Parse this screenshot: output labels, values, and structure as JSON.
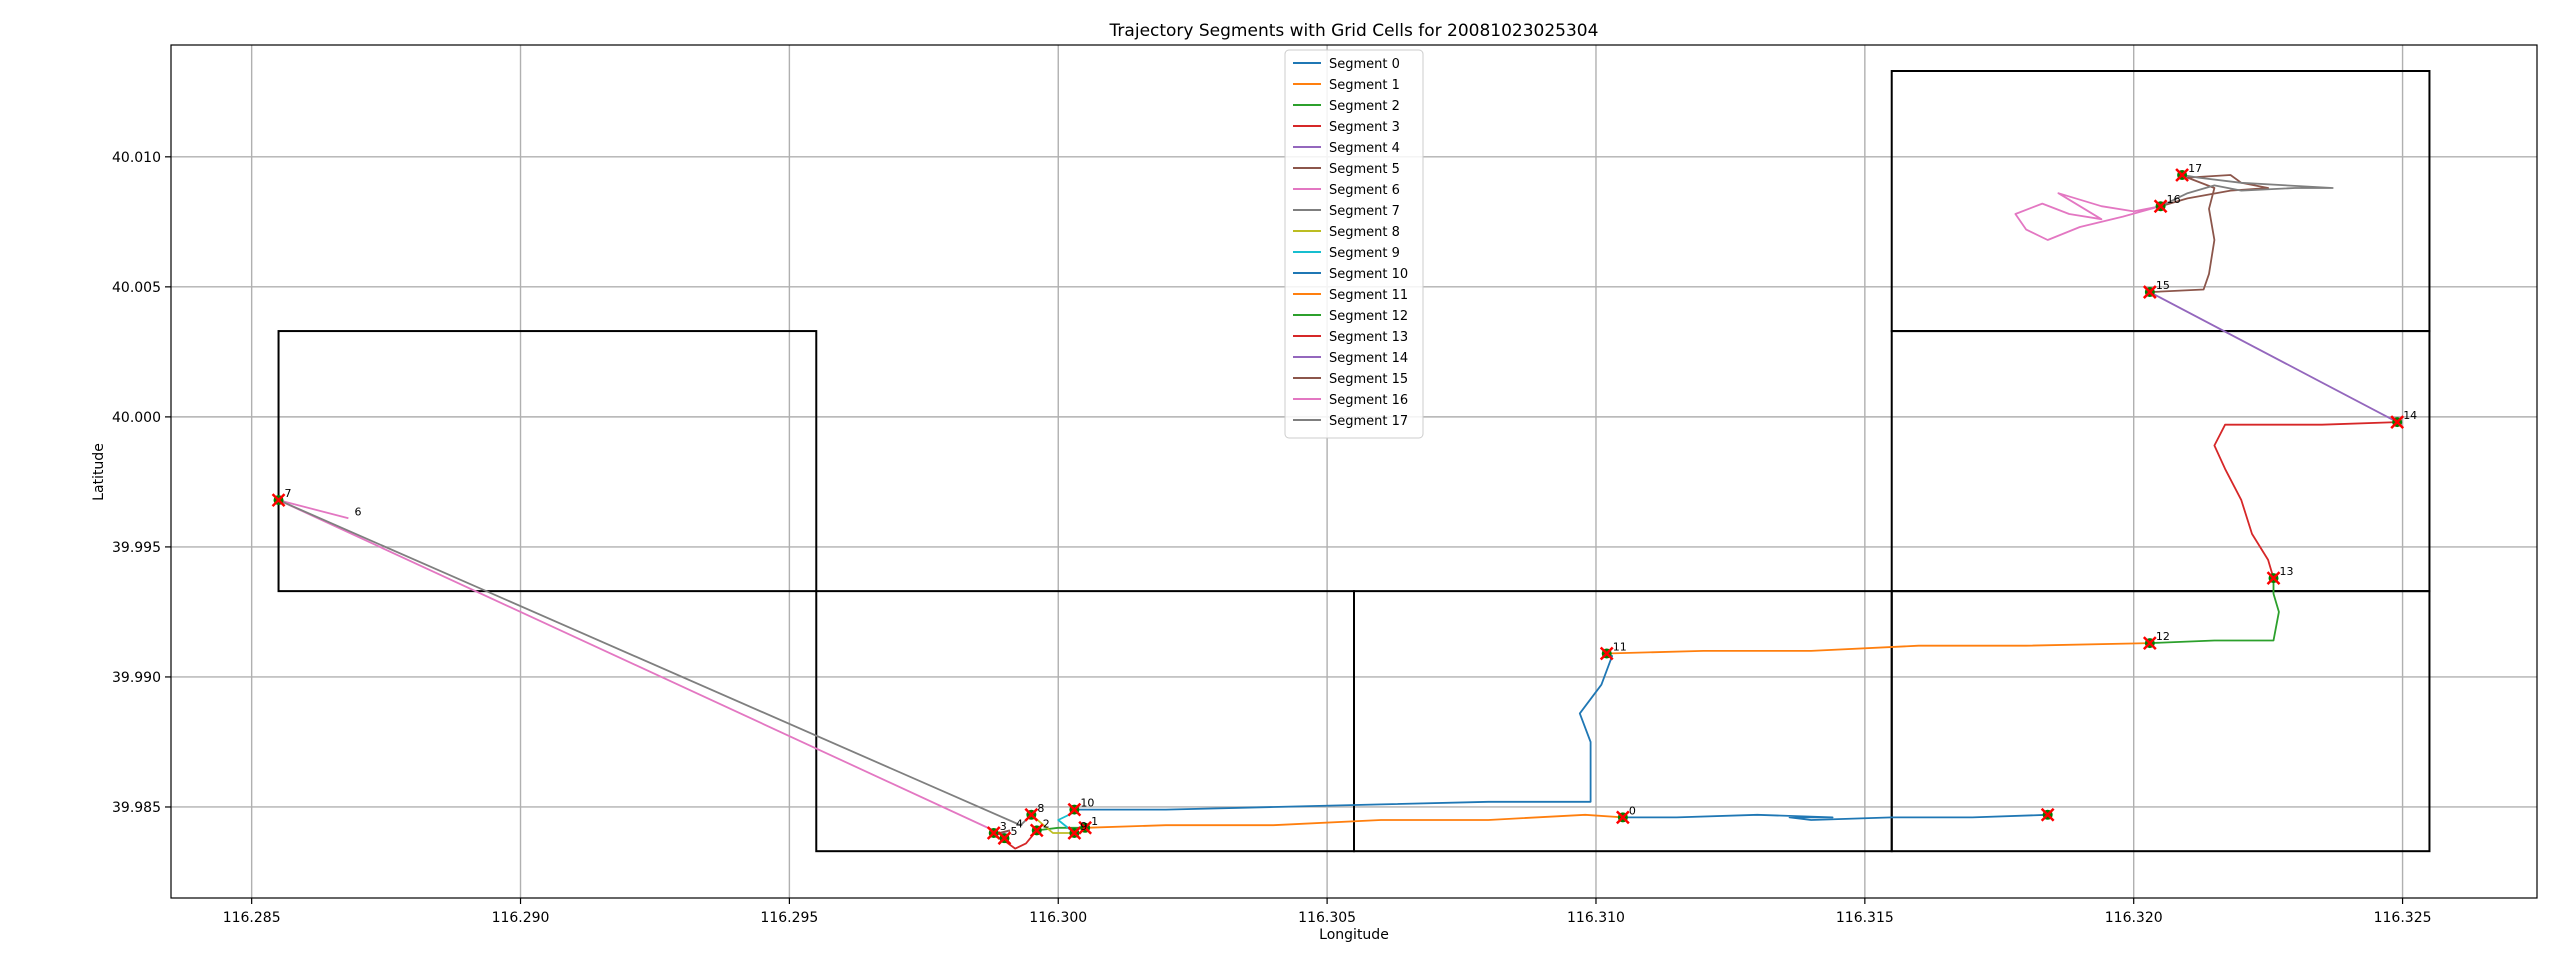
{
  "chart_data": {
    "type": "line",
    "title": "Trajectory Segments with Grid Cells for 20081023025304",
    "xlabel": "Longitude",
    "ylabel": "Latitude",
    "xlim": [
      116.2835,
      116.3275
    ],
    "ylim": [
      39.9815,
      40.0143
    ],
    "x_ticks": [
      116.285,
      116.29,
      116.295,
      116.3,
      116.305,
      116.31,
      116.315,
      116.32,
      116.325
    ],
    "x_tick_labels": [
      "116.285",
      "116.290",
      "116.295",
      "116.300",
      "116.305",
      "116.310",
      "116.315",
      "116.320",
      "116.325"
    ],
    "y_ticks": [
      39.985,
      39.99,
      39.995,
      40.0,
      40.005,
      40.01
    ],
    "y_tick_labels": [
      "39.985",
      "39.990",
      "39.995",
      "40.000",
      "40.005",
      "40.010"
    ],
    "grid": true,
    "legend_position": "upper center",
    "grid_cells": [
      {
        "x0": 116.2855,
        "y0": 39.9933,
        "x1": 116.2955,
        "y1": 40.0033
      },
      {
        "x0": 116.2955,
        "y0": 39.9833,
        "x1": 116.3055,
        "y1": 39.9933
      },
      {
        "x0": 116.3055,
        "y0": 39.9833,
        "x1": 116.3155,
        "y1": 39.9933
      },
      {
        "x0": 116.3155,
        "y0": 39.9833,
        "x1": 116.3255,
        "y1": 39.9933
      },
      {
        "x0": 116.3155,
        "y0": 39.9933,
        "x1": 116.3255,
        "y1": 40.0033
      },
      {
        "x0": 116.3155,
        "y0": 40.0033,
        "x1": 116.3255,
        "y1": 40.0133
      }
    ],
    "series": [
      {
        "name": "Segment 0",
        "color": "#1f77b4",
        "points": [
          [
            116.3184,
            39.9847
          ],
          [
            116.317,
            39.9846
          ],
          [
            116.3155,
            39.9846
          ],
          [
            116.314,
            39.9845
          ],
          [
            116.3136,
            39.9846
          ],
          [
            116.3144,
            39.9846
          ],
          [
            116.313,
            39.9847
          ],
          [
            116.3115,
            39.9846
          ],
          [
            116.3105,
            39.9846
          ]
        ]
      },
      {
        "name": "Segment 1",
        "color": "#ff7f0e",
        "points": [
          [
            116.3105,
            39.9846
          ],
          [
            116.3098,
            39.9847
          ],
          [
            116.308,
            39.9845
          ],
          [
            116.306,
            39.9845
          ],
          [
            116.304,
            39.9843
          ],
          [
            116.302,
            39.9843
          ],
          [
            116.3005,
            39.9842
          ]
        ]
      },
      {
        "name": "Segment 2",
        "color": "#2ca02c",
        "points": [
          [
            116.3005,
            39.9842
          ],
          [
            116.3,
            39.9842
          ],
          [
            116.2996,
            39.9841
          ]
        ]
      },
      {
        "name": "Segment 3",
        "color": "#d62728",
        "points": [
          [
            116.2996,
            39.9841
          ],
          [
            116.2994,
            39.9836
          ],
          [
            116.2992,
            39.9834
          ],
          [
            116.299,
            39.9837
          ],
          [
            116.2988,
            39.9839
          ]
        ]
      },
      {
        "name": "Segment 4",
        "color": "#9467bd",
        "points": [
          [
            116.2988,
            39.9839
          ],
          [
            116.2991,
            39.9841
          ]
        ]
      },
      {
        "name": "Segment 5",
        "color": "#8c564b",
        "points": [
          [
            116.2991,
            39.9841
          ],
          [
            116.2989,
            39.984
          ]
        ]
      },
      {
        "name": "Segment 6",
        "color": "#e377c2",
        "points": [
          [
            116.2989,
            39.984
          ],
          [
            116.2855,
            39.9968
          ],
          [
            116.2868,
            39.9961
          ]
        ]
      },
      {
        "name": "Segment 7",
        "color": "#7f7f7f",
        "points": [
          [
            116.2855,
            39.9968
          ],
          [
            116.2993,
            39.9843
          ],
          [
            116.2995,
            39.9847
          ]
        ]
      },
      {
        "name": "Segment 8",
        "color": "#bcbd22",
        "points": [
          [
            116.2995,
            39.9847
          ],
          [
            116.2999,
            39.984
          ],
          [
            116.3003,
            39.984
          ]
        ]
      },
      {
        "name": "Segment 9",
        "color": "#17becf",
        "points": [
          [
            116.3003,
            39.984
          ],
          [
            116.3,
            39.9845
          ],
          [
            116.3003,
            39.9848
          ]
        ]
      },
      {
        "name": "Segment 10",
        "color": "#1f77b4",
        "points": [
          [
            116.3003,
            39.9849
          ],
          [
            116.302,
            39.9849
          ],
          [
            116.304,
            39.985
          ],
          [
            116.306,
            39.9851
          ],
          [
            116.308,
            39.9852
          ],
          [
            116.3099,
            39.9852
          ],
          [
            116.3099,
            39.986
          ],
          [
            116.3099,
            39.9875
          ],
          [
            116.3097,
            39.9886
          ],
          [
            116.3101,
            39.9897
          ],
          [
            116.3103,
            39.9908
          ],
          [
            116.3102,
            39.9909
          ]
        ]
      },
      {
        "name": "Segment 11",
        "color": "#ff7f0e",
        "points": [
          [
            116.3102,
            39.9909
          ],
          [
            116.312,
            39.991
          ],
          [
            116.314,
            39.991
          ],
          [
            116.316,
            39.9912
          ],
          [
            116.318,
            39.9912
          ],
          [
            116.3203,
            39.9913
          ]
        ]
      },
      {
        "name": "Segment 12",
        "color": "#2ca02c",
        "points": [
          [
            116.3203,
            39.9913
          ],
          [
            116.3215,
            39.9914
          ],
          [
            116.3226,
            39.9914
          ],
          [
            116.3227,
            39.9925
          ],
          [
            116.3226,
            39.9932
          ],
          [
            116.3226,
            39.9938
          ]
        ]
      },
      {
        "name": "Segment 13",
        "color": "#d62728",
        "points": [
          [
            116.3226,
            39.9938
          ],
          [
            116.3225,
            39.9945
          ],
          [
            116.3222,
            39.9955
          ],
          [
            116.322,
            39.9968
          ],
          [
            116.3217,
            39.998
          ],
          [
            116.3215,
            39.9989
          ],
          [
            116.3217,
            39.9997
          ],
          [
            116.3235,
            39.9997
          ],
          [
            116.3249,
            39.9998
          ]
        ]
      },
      {
        "name": "Segment 14",
        "color": "#9467bd",
        "points": [
          [
            116.3249,
            39.9998
          ],
          [
            116.3203,
            40.0048
          ]
        ]
      },
      {
        "name": "Segment 15",
        "color": "#8c564b",
        "points": [
          [
            116.3203,
            40.0048
          ],
          [
            116.3213,
            40.0049
          ],
          [
            116.3214,
            40.0055
          ],
          [
            116.3215,
            40.0068
          ],
          [
            116.3214,
            40.008
          ],
          [
            116.3215,
            40.0088
          ],
          [
            116.321,
            40.0092
          ],
          [
            116.3218,
            40.0093
          ],
          [
            116.322,
            40.009
          ],
          [
            116.3225,
            40.0088
          ],
          [
            116.3218,
            40.0087
          ],
          [
            116.321,
            40.0084
          ],
          [
            116.3205,
            40.0081
          ]
        ]
      },
      {
        "name": "Segment 16",
        "color": "#e377c2",
        "points": [
          [
            116.3205,
            40.0081
          ],
          [
            116.3198,
            40.0077
          ],
          [
            116.319,
            40.0073
          ],
          [
            116.3184,
            40.0068
          ],
          [
            116.318,
            40.0072
          ],
          [
            116.3178,
            40.0078
          ],
          [
            116.3183,
            40.0082
          ],
          [
            116.3188,
            40.0078
          ],
          [
            116.3194,
            40.0076
          ],
          [
            116.3186,
            40.0086
          ],
          [
            116.3194,
            40.0081
          ],
          [
            116.32,
            40.0079
          ],
          [
            116.3205,
            40.0081
          ]
        ]
      },
      {
        "name": "Segment 17",
        "color": "#7f7f7f",
        "points": [
          [
            116.3205,
            40.0081
          ],
          [
            116.321,
            40.0086
          ],
          [
            116.3215,
            40.0089
          ],
          [
            116.322,
            40.0087
          ],
          [
            116.323,
            40.0088
          ],
          [
            116.3237,
            40.0088
          ],
          [
            116.322,
            40.009
          ],
          [
            116.3212,
            40.0092
          ],
          [
            116.3209,
            40.0093
          ]
        ]
      }
    ],
    "markers": [
      {
        "x": 116.2855,
        "y": 39.9968
      },
      {
        "x": 116.2988,
        "y": 39.984
      },
      {
        "x": 116.299,
        "y": 39.9838
      },
      {
        "x": 116.2995,
        "y": 39.9847
      },
      {
        "x": 116.2996,
        "y": 39.9841
      },
      {
        "x": 116.3003,
        "y": 39.984
      },
      {
        "x": 116.3003,
        "y": 39.9849
      },
      {
        "x": 116.3005,
        "y": 39.9842
      },
      {
        "x": 116.3102,
        "y": 39.9909
      },
      {
        "x": 116.3105,
        "y": 39.9846
      },
      {
        "x": 116.3184,
        "y": 39.9847
      },
      {
        "x": 116.3203,
        "y": 39.9913
      },
      {
        "x": 116.3203,
        "y": 40.0048
      },
      {
        "x": 116.3205,
        "y": 40.0081
      },
      {
        "x": 116.3209,
        "y": 40.0093
      },
      {
        "x": 116.3226,
        "y": 39.9938
      },
      {
        "x": 116.3249,
        "y": 39.9998
      }
    ],
    "point_labels": [
      {
        "x": 116.3105,
        "y": 39.9846,
        "text": "0"
      },
      {
        "x": 116.3005,
        "y": 39.9842,
        "text": "1"
      },
      {
        "x": 116.2996,
        "y": 39.9841,
        "text": "2"
      },
      {
        "x": 116.2988,
        "y": 39.984,
        "text": "3"
      },
      {
        "x": 116.2991,
        "y": 39.9841,
        "text": "4"
      },
      {
        "x": 116.299,
        "y": 39.9838,
        "text": "5"
      },
      {
        "x": 116.2868,
        "y": 39.9961,
        "text": "6"
      },
      {
        "x": 116.2855,
        "y": 39.9968,
        "text": "7"
      },
      {
        "x": 116.2995,
        "y": 39.9847,
        "text": "8"
      },
      {
        "x": 116.3003,
        "y": 39.984,
        "text": "9"
      },
      {
        "x": 116.3003,
        "y": 39.9849,
        "text": "10"
      },
      {
        "x": 116.3102,
        "y": 39.9909,
        "text": "11"
      },
      {
        "x": 116.3203,
        "y": 39.9913,
        "text": "12"
      },
      {
        "x": 116.3226,
        "y": 39.9938,
        "text": "13"
      },
      {
        "x": 116.3249,
        "y": 39.9998,
        "text": "14"
      },
      {
        "x": 116.3203,
        "y": 40.0048,
        "text": "15"
      },
      {
        "x": 116.3205,
        "y": 40.0081,
        "text": "16"
      },
      {
        "x": 116.3209,
        "y": 40.0093,
        "text": "17"
      }
    ]
  }
}
